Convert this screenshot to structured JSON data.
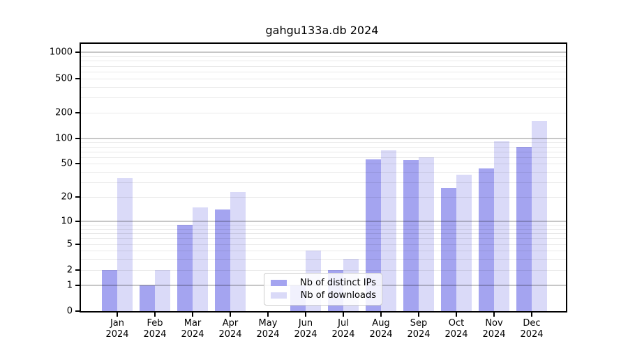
{
  "chart_data": {
    "type": "bar",
    "title": "gahgu133a.db 2024",
    "year_label": "2024",
    "categories": [
      "Jan",
      "Feb",
      "Mar",
      "Apr",
      "May",
      "Jun",
      "Jul",
      "Aug",
      "Sep",
      "Oct",
      "Nov",
      "Dec"
    ],
    "series": [
      {
        "name": "Nb of distinct IPs",
        "color": "#a4a4f0",
        "values": [
          2,
          1,
          9,
          14,
          0,
          1,
          2,
          56,
          55,
          26,
          44,
          80
        ]
      },
      {
        "name": "Nb of downloads",
        "color": "#dadaf8",
        "values": [
          34,
          2,
          15,
          23,
          0,
          4,
          3,
          72,
          60,
          37,
          93,
          158
        ]
      }
    ],
    "yscale": "log10(value+1)",
    "yticks": [
      0,
      1,
      2,
      5,
      10,
      20,
      50,
      100,
      200,
      500,
      1000
    ],
    "ylim": [
      0,
      1250
    ],
    "xlabel": "",
    "ylabel": "",
    "grid": true,
    "grid_above_bars": true,
    "legend_position": "lower center"
  },
  "legend": {
    "items": [
      {
        "label": "Nb of distinct IPs",
        "color": "#a4a4f0"
      },
      {
        "label": "Nb of downloads",
        "color": "#dadaf8"
      }
    ]
  }
}
